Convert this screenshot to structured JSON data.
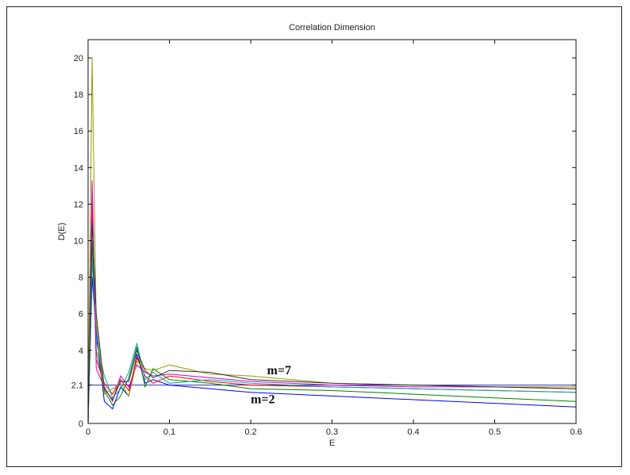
{
  "chart_data": {
    "type": "line",
    "title": "Correlation Dimension",
    "xlabel": "E",
    "ylabel": "D(E)",
    "xlim": [
      0,
      0.6
    ],
    "ylim": [
      0,
      21
    ],
    "xticks": [
      0,
      0.1,
      0.2,
      0.3,
      0.4,
      0.5,
      0.6
    ],
    "xtick_labels": [
      "0",
      "0.1",
      "0.2",
      "0.3",
      "0.4",
      "0.5",
      "0.6"
    ],
    "yticks": [
      0,
      2.1,
      4,
      6,
      8,
      10,
      12,
      14,
      16,
      18,
      20
    ],
    "ytick_labels": [
      "0",
      "2.1",
      "4",
      "6",
      "8",
      "10",
      "12",
      "14",
      "16",
      "18",
      "20"
    ],
    "reference_line": {
      "y": 2.1,
      "color": "#3333aa"
    },
    "grid": false,
    "annotations": [
      {
        "text": "m=7",
        "x": 0.22,
        "y": 2.7
      },
      {
        "text": "m=2",
        "x": 0.2,
        "y": 1.1
      }
    ],
    "series": [
      {
        "color": "#0000ff",
        "x": [
          0,
          0.005,
          0.01,
          0.02,
          0.03,
          0.04,
          0.05,
          0.06,
          0.07,
          0.08,
          0.1,
          0.15,
          0.2,
          0.3,
          0.4,
          0.5,
          0.6
        ],
        "values": [
          0,
          8.0,
          5.0,
          1.2,
          0.8,
          2.0,
          1.5,
          3.8,
          2.2,
          2.4,
          2.1,
          1.9,
          1.7,
          1.5,
          1.3,
          1.1,
          0.9
        ]
      },
      {
        "color": "#008000",
        "x": [
          0,
          0.005,
          0.01,
          0.02,
          0.03,
          0.04,
          0.05,
          0.06,
          0.07,
          0.08,
          0.1,
          0.15,
          0.2,
          0.3,
          0.4,
          0.5,
          0.6
        ],
        "values": [
          0,
          10.0,
          4.0,
          1.8,
          1.0,
          1.5,
          2.5,
          4.2,
          2.0,
          3.0,
          2.4,
          2.2,
          1.9,
          1.8,
          1.6,
          1.4,
          1.2
        ]
      },
      {
        "color": "#ff0000",
        "x": [
          0,
          0.005,
          0.01,
          0.02,
          0.03,
          0.04,
          0.05,
          0.06,
          0.07,
          0.08,
          0.1,
          0.15,
          0.2,
          0.3,
          0.4,
          0.5,
          0.6
        ],
        "values": [
          0,
          12.0,
          3.5,
          2.2,
          1.6,
          2.4,
          1.8,
          3.6,
          2.6,
          2.2,
          2.6,
          2.3,
          2.1,
          2.0,
          1.9,
          1.8,
          1.7
        ]
      },
      {
        "color": "#00aaaa",
        "x": [
          0,
          0.005,
          0.01,
          0.02,
          0.03,
          0.04,
          0.05,
          0.06,
          0.07,
          0.08,
          0.1,
          0.15,
          0.2,
          0.3,
          0.4,
          0.5,
          0.6
        ],
        "values": [
          0,
          9.0,
          4.5,
          2.6,
          1.4,
          1.9,
          2.8,
          4.4,
          2.4,
          2.8,
          2.2,
          2.4,
          2.2,
          2.0,
          1.9,
          1.8,
          1.7
        ]
      },
      {
        "color": "#cc00cc",
        "x": [
          0,
          0.005,
          0.01,
          0.02,
          0.03,
          0.04,
          0.05,
          0.06,
          0.07,
          0.08,
          0.1,
          0.15,
          0.2,
          0.3,
          0.4,
          0.5,
          0.6
        ],
        "values": [
          0,
          13.3,
          3.0,
          2.0,
          1.2,
          2.6,
          2.0,
          3.2,
          2.8,
          2.6,
          2.7,
          2.5,
          2.3,
          2.1,
          2.0,
          2.0,
          1.9
        ]
      },
      {
        "color": "#999900",
        "x": [
          0,
          0.005,
          0.01,
          0.02,
          0.03,
          0.04,
          0.05,
          0.06,
          0.07,
          0.08,
          0.1,
          0.15,
          0.2,
          0.3,
          0.4,
          0.5,
          0.6
        ],
        "values": [
          0,
          20.0,
          5.5,
          1.6,
          1.9,
          2.2,
          1.5,
          3.4,
          3.0,
          2.9,
          3.2,
          2.7,
          2.6,
          2.2,
          2.1,
          2.0,
          2.0
        ]
      },
      {
        "color": "#333333",
        "x": [
          0,
          0.005,
          0.01,
          0.02,
          0.03,
          0.04,
          0.05,
          0.06,
          0.07,
          0.08,
          0.1,
          0.15,
          0.2,
          0.3,
          0.4,
          0.5,
          0.6
        ],
        "values": [
          0,
          11.0,
          6.0,
          1.9,
          1.3,
          2.3,
          2.3,
          4.0,
          2.9,
          2.5,
          2.9,
          2.8,
          2.4,
          2.2,
          2.1,
          2.0,
          1.9
        ]
      }
    ]
  }
}
